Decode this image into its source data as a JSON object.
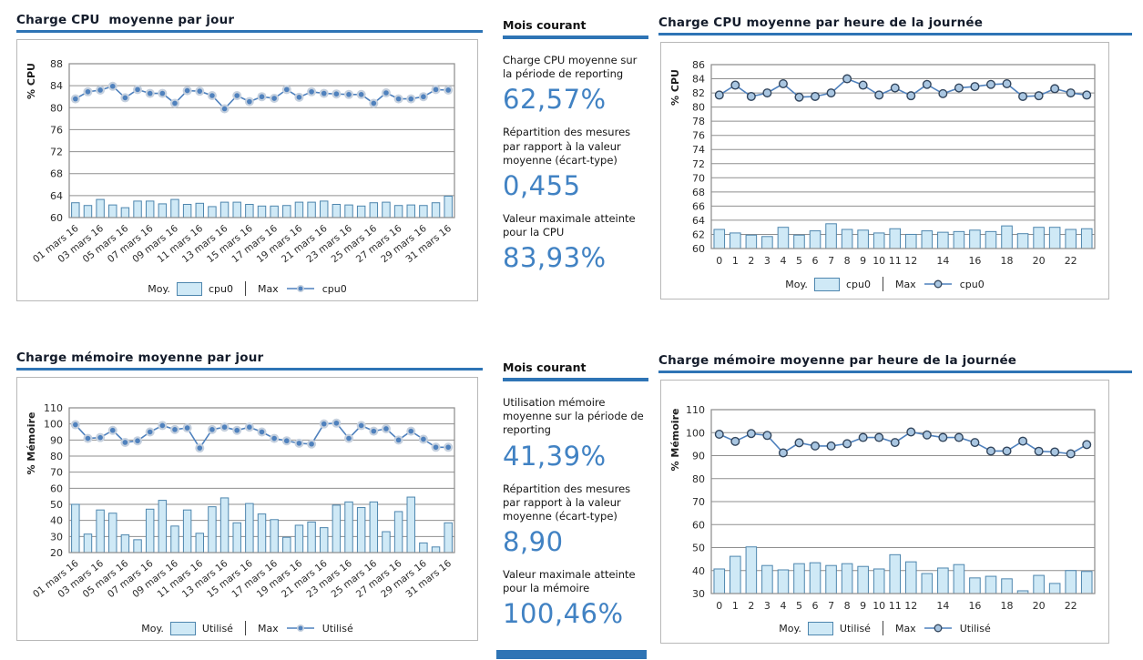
{
  "colors": {
    "accent_underline": "#2e74b5",
    "title_dark": "#141c2b",
    "stat_value_blue": "#4182c3",
    "bar_fill": "#cfe9f6",
    "bar_stroke": "#4e86ae",
    "line_blue": "#4f81bd",
    "marker_halo": "#c5d0de",
    "marker_fill_hour": "#a9c6e1",
    "marker_stroke_hour": "#32455c",
    "grid_gray": "#8f8f8f",
    "panel_border": "#b8b8b8"
  },
  "stats": [
    {
      "header": "Mois courant",
      "items": [
        {
          "label": "Charge CPU moyenne sur la période de reporting",
          "value": "62,57%"
        },
        {
          "label": "Répartition des mesures par rapport à la valeur moyenne (écart-type)",
          "value": "0,455"
        },
        {
          "label": "Valeur maximale atteinte pour la CPU",
          "value": "83,93%"
        }
      ]
    },
    {
      "header": "Mois courant",
      "items": [
        {
          "label": "Utilisation mémoire moyenne sur la période de reporting",
          "value": "41,39%"
        },
        {
          "label": "Répartition des mesures par rapport à la valeur moyenne (écart-type)",
          "value": "8,90"
        },
        {
          "label": "Valeur maximale atteinte pour la mémoire",
          "value": "100,46%"
        }
      ]
    }
  ],
  "chart_data": [
    {
      "type": "bar+line",
      "title": "Charge CPU  moyenne par jour",
      "ylabel": "% CPU",
      "ylim": [
        60,
        88
      ],
      "ystep": 4,
      "grid": true,
      "legend_position": "bottom",
      "x": [
        1,
        2,
        3,
        4,
        5,
        6,
        7,
        8,
        9,
        10,
        11,
        12,
        13,
        14,
        15,
        16,
        17,
        18,
        19,
        20,
        21,
        22,
        23,
        24,
        25,
        26,
        27,
        28,
        29,
        30,
        31
      ],
      "xticks": {
        "positions": [
          0,
          2,
          4,
          6,
          8,
          10,
          12,
          14,
          16,
          18,
          20,
          22,
          24,
          26,
          28,
          30
        ],
        "labels": [
          "01 mars 16",
          "03 mars 16",
          "05 mars 16",
          "07 mars 16",
          "09 mars 16",
          "11 mars 16",
          "13 mars 16",
          "15 mars 16",
          "17 mars 16",
          "19 mars 16",
          "21 mars 16",
          "23 mars 16",
          "25 mars 16",
          "27 mars 16",
          "29 mars 16",
          "31 mars 16"
        ]
      },
      "series": [
        {
          "name": "cpu0",
          "role": "Moy.",
          "kind": "bar",
          "values": [
            62.7,
            62.2,
            63.3,
            62.3,
            61.8,
            63.0,
            63.0,
            62.5,
            63.3,
            62.4,
            62.6,
            62.0,
            62.8,
            62.8,
            62.4,
            62.1,
            62.1,
            62.2,
            62.8,
            62.8,
            63.0,
            62.4,
            62.3,
            62.1,
            62.7,
            62.8,
            62.2,
            62.3,
            62.2,
            62.7,
            63.9
          ]
        },
        {
          "name": "cpu0",
          "role": "Max",
          "kind": "line",
          "values": [
            81.6,
            82.9,
            83.2,
            83.9,
            81.8,
            83.3,
            82.6,
            82.6,
            80.8,
            83.1,
            83.0,
            82.2,
            79.8,
            82.2,
            81.1,
            82.0,
            81.7,
            83.3,
            81.9,
            82.9,
            82.6,
            82.5,
            82.4,
            82.4,
            80.8,
            82.7,
            81.6,
            81.6,
            82.0,
            83.3,
            83.2
          ]
        }
      ],
      "legend": {
        "moy_label": "Moy.",
        "moy_series": "cpu0",
        "max_label": "Max",
        "max_series": "cpu0"
      }
    },
    {
      "type": "bar+line",
      "title": "Charge CPU moyenne par heure de la journée",
      "ylabel": "% CPU",
      "ylim": [
        60,
        86
      ],
      "ystep": 2,
      "grid": true,
      "legend_position": "bottom",
      "x": [
        0,
        1,
        2,
        3,
        4,
        5,
        6,
        7,
        8,
        9,
        10,
        11,
        12,
        13,
        14,
        15,
        16,
        17,
        18,
        19,
        20,
        21,
        22,
        23
      ],
      "xticks": {
        "positions": [
          0,
          1,
          2,
          3,
          4,
          5,
          6,
          7,
          8,
          9,
          10,
          11,
          12,
          14,
          16,
          18,
          20,
          22
        ],
        "labels": [
          "0",
          "1",
          "2",
          "3",
          "4",
          "5",
          "6",
          "7",
          "8",
          "9",
          "10",
          "11",
          "12",
          "14",
          "16",
          "18",
          "20",
          "22"
        ]
      },
      "series": [
        {
          "name": "cpu0",
          "role": "Moy.",
          "kind": "bar",
          "values": [
            62.7,
            62.2,
            61.9,
            61.7,
            63.0,
            61.9,
            62.5,
            63.5,
            62.7,
            62.6,
            62.2,
            62.8,
            62.0,
            62.5,
            62.3,
            62.4,
            62.6,
            62.4,
            63.2,
            62.1,
            63.0,
            63.0,
            62.7,
            62.8
          ]
        },
        {
          "name": "cpu0",
          "role": "Max",
          "kind": "line",
          "values": [
            81.7,
            83.1,
            81.5,
            82.0,
            83.3,
            81.4,
            81.5,
            82.0,
            84.0,
            83.1,
            81.7,
            82.7,
            81.6,
            83.2,
            81.9,
            82.7,
            82.9,
            83.2,
            83.3,
            81.5,
            81.6,
            82.6,
            82.0,
            81.7
          ]
        }
      ],
      "legend": {
        "moy_label": "Moy.",
        "moy_series": "cpu0",
        "max_label": "Max",
        "max_series": "cpu0"
      }
    },
    {
      "type": "bar+line",
      "title": "Charge mémoire moyenne par jour",
      "ylabel": "% Mémoire",
      "ylim": [
        20,
        110
      ],
      "ystep": 10,
      "grid": true,
      "legend_position": "bottom",
      "x": [
        1,
        2,
        3,
        4,
        5,
        6,
        7,
        8,
        9,
        10,
        11,
        12,
        13,
        14,
        15,
        16,
        17,
        18,
        19,
        20,
        21,
        22,
        23,
        24,
        25,
        26,
        27,
        28,
        29,
        30,
        31
      ],
      "xticks": {
        "positions": [
          0,
          2,
          4,
          6,
          8,
          10,
          12,
          14,
          16,
          18,
          20,
          22,
          24,
          26,
          28,
          30
        ],
        "labels": [
          "01 mars 16",
          "03 mars 16",
          "05 mars 16",
          "07 mars 16",
          "09 mars 16",
          "11 mars 16",
          "13 mars 16",
          "15 mars 16",
          "17 mars 16",
          "19 mars 16",
          "21 mars 16",
          "23 mars 16",
          "25 mars 16",
          "27 mars 16",
          "29 mars 16",
          "31 mars 16"
        ]
      },
      "series": [
        {
          "name": "Utilisé",
          "role": "Moy.",
          "kind": "bar",
          "values": [
            50.0,
            31.5,
            46.5,
            44.5,
            31.0,
            28.0,
            47.0,
            52.5,
            36.5,
            46.5,
            32.0,
            48.5,
            54.0,
            38.5,
            50.5,
            44.0,
            40.5,
            29.5,
            37.0,
            39.0,
            35.5,
            49.5,
            51.5,
            48.0,
            51.5,
            33.0,
            45.5,
            54.5,
            26.0,
            23.5,
            38.5
          ]
        },
        {
          "name": "Utilisé",
          "role": "Max",
          "kind": "line",
          "values": [
            99.5,
            91.0,
            91.5,
            96.0,
            88.5,
            89.5,
            95.0,
            99.0,
            96.5,
            97.5,
            85.0,
            96.5,
            98.0,
            96.0,
            98.0,
            95.0,
            91.0,
            89.5,
            88.0,
            87.5,
            100.0,
            100.5,
            91.0,
            99.0,
            95.5,
            97.0,
            90.0,
            95.5,
            90.5,
            85.5,
            85.5
          ]
        }
      ],
      "legend": {
        "moy_label": "Moy.",
        "moy_series": "Utilisé",
        "max_label": "Max",
        "max_series": "Utilisé"
      }
    },
    {
      "type": "bar+line",
      "title": "Charge mémoire moyenne par heure de la journée",
      "ylabel": "% Mémoire",
      "ylim": [
        30,
        110
      ],
      "ystep": 10,
      "grid": true,
      "legend_position": "bottom",
      "x": [
        0,
        1,
        2,
        3,
        4,
        5,
        6,
        7,
        8,
        9,
        10,
        11,
        12,
        13,
        14,
        15,
        16,
        17,
        18,
        19,
        20,
        21,
        22,
        23
      ],
      "xticks": {
        "positions": [
          0,
          1,
          2,
          3,
          4,
          5,
          6,
          7,
          8,
          9,
          10,
          11,
          12,
          14,
          16,
          18,
          20,
          22
        ],
        "labels": [
          "0",
          "1",
          "2",
          "3",
          "4",
          "5",
          "6",
          "7",
          "8",
          "9",
          "10",
          "11",
          "12",
          "14",
          "16",
          "18",
          "20",
          "22"
        ]
      },
      "series": [
        {
          "name": "Utilisé",
          "role": "Moy.",
          "kind": "bar",
          "values": [
            40.7,
            46.2,
            50.3,
            42.2,
            40.3,
            43.0,
            43.4,
            42.2,
            43.0,
            41.8,
            40.7,
            46.9,
            43.8,
            38.7,
            41.1,
            42.6,
            36.8,
            37.5,
            36.4,
            31.2,
            37.9,
            34.4,
            40.0,
            39.6
          ]
        },
        {
          "name": "Utilisé",
          "role": "Max",
          "kind": "line",
          "values": [
            99.3,
            96.2,
            99.6,
            98.8,
            91.2,
            95.6,
            94.2,
            94.2,
            95.2,
            97.9,
            97.9,
            95.7,
            100.3,
            99.0,
            97.9,
            97.9,
            95.7,
            92.0,
            92.0,
            96.3,
            91.9,
            91.6,
            90.8,
            94.8
          ]
        }
      ],
      "legend": {
        "moy_label": "Moy.",
        "moy_series": "Utilisé",
        "max_label": "Max",
        "max_series": "Utilisé"
      }
    }
  ]
}
